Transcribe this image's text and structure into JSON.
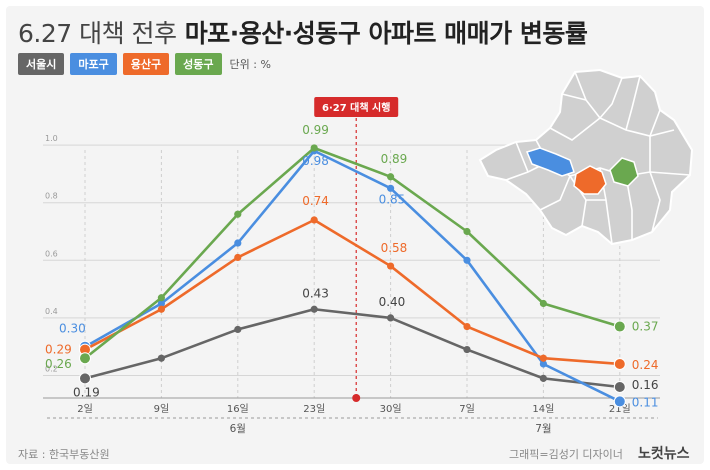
{
  "title": {
    "light": "6.27 대책 전후",
    "bold": "마포·용산·성동구 아파트 매매가 변동률"
  },
  "legend": {
    "unit": "단위 : %"
  },
  "event_label": "6·27 대책 시행",
  "source": "자료 : 한국부동산원",
  "credit": "그래픽=김성기 디자이너",
  "brand": "노컷뉴스",
  "chart_data": {
    "type": "line",
    "title": "마포·용산·성동구 아파트 매매가 변동률",
    "xlabel": "",
    "ylabel": "",
    "unit": "%",
    "ylim": [
      0.1,
      1.0
    ],
    "yticks": [
      "0.2",
      "0.4",
      "0.6",
      "0.8",
      "1.0"
    ],
    "categories": [
      "2일",
      "9일",
      "16일",
      "23일",
      "30일",
      "7일",
      "14일",
      "21일"
    ],
    "month_groups": [
      {
        "label": "6월",
        "start": 0,
        "end": 4
      },
      {
        "label": "7월",
        "start": 5,
        "end": 7
      }
    ],
    "event": {
      "label": "6·27 대책 시행",
      "position": 3.55
    },
    "series": [
      {
        "name": "서울시",
        "color": "#666666",
        "values": [
          0.19,
          0.26,
          0.36,
          0.43,
          0.4,
          0.29,
          0.19,
          0.16
        ]
      },
      {
        "name": "마포구",
        "color": "#4a8ee0",
        "values": [
          0.3,
          0.45,
          0.66,
          0.98,
          0.85,
          0.6,
          0.24,
          0.11
        ]
      },
      {
        "name": "용산구",
        "color": "#ee6a2a",
        "values": [
          0.29,
          0.43,
          0.61,
          0.74,
          0.58,
          0.37,
          0.26,
          0.24
        ]
      },
      {
        "name": "성동구",
        "color": "#6aa84f",
        "values": [
          0.26,
          0.47,
          0.76,
          0.99,
          0.89,
          0.7,
          0.45,
          0.37
        ]
      }
    ],
    "labels": [
      {
        "series": 1,
        "index": 0,
        "text": "0.30"
      },
      {
        "series": 2,
        "index": 0,
        "text": "0.29"
      },
      {
        "series": 3,
        "index": 0,
        "text": "0.26"
      },
      {
        "series": 0,
        "index": 0,
        "text": "0.19"
      },
      {
        "series": 3,
        "index": 3,
        "text": "0.99"
      },
      {
        "series": 1,
        "index": 3,
        "text": "0.98"
      },
      {
        "series": 2,
        "index": 3,
        "text": "0.74"
      },
      {
        "series": 0,
        "index": 3,
        "text": "0.43"
      },
      {
        "series": 3,
        "index": 4,
        "text": "0.89"
      },
      {
        "series": 1,
        "index": 4,
        "text": "0.85"
      },
      {
        "series": 2,
        "index": 4,
        "text": "0.58"
      },
      {
        "series": 0,
        "index": 4,
        "text": "0.40"
      },
      {
        "series": 3,
        "index": 7,
        "text": "0.37"
      },
      {
        "series": 2,
        "index": 7,
        "text": "0.24"
      },
      {
        "series": 0,
        "index": 7,
        "text": "0.16"
      },
      {
        "series": 1,
        "index": 7,
        "text": "0.11"
      }
    ],
    "grid": true,
    "legend_position": "top-left",
    "map": {
      "highlights": [
        "마포구",
        "용산구",
        "성동구"
      ]
    }
  }
}
